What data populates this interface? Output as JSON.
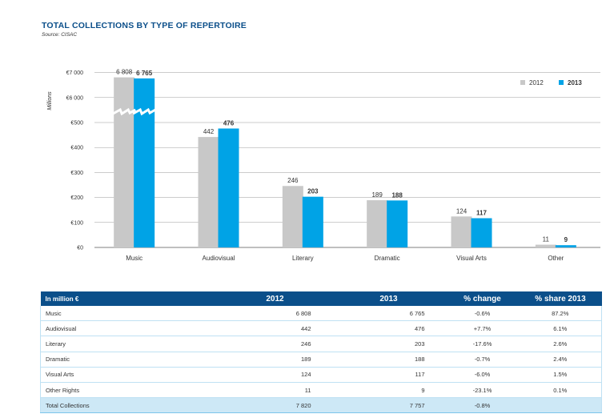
{
  "header": {
    "title": "TOTAL COLLECTIONS BY TYPE OF REPERTOIRE",
    "source": "Source: CISAC"
  },
  "chart_data": {
    "type": "bar",
    "ylabel": "Millions",
    "y_ticks": [
      "€0",
      "€100",
      "€200",
      "€300",
      "€400",
      "€500",
      "€6 000",
      "€7 000"
    ],
    "axis_break": "between €500 and €6 000",
    "categories": [
      "Music",
      "Audiovisual",
      "Literary",
      "Dramatic",
      "Visual Arts",
      "Other"
    ],
    "series": [
      {
        "name": "2012",
        "color": "#c8c8c8",
        "values": [
          6808,
          442,
          246,
          189,
          124,
          11
        ],
        "labels": [
          "6 808",
          "442",
          "246",
          "189",
          "124",
          "11"
        ]
      },
      {
        "name": "2013",
        "color": "#00a3e6",
        "values": [
          6765,
          476,
          203,
          188,
          117,
          9
        ],
        "labels": [
          "6 765",
          "476",
          "203",
          "188",
          "117",
          "9"
        ]
      }
    ],
    "legend_position": "top-right",
    "grid": true
  },
  "table": {
    "headers": [
      "In million €",
      "2012",
      "2013",
      "% change",
      "% share 2013"
    ],
    "rows": [
      [
        "Music",
        "6 808",
        "6 765",
        "-0.6%",
        "87.2%"
      ],
      [
        "Audiovisual",
        "442",
        "476",
        "+7.7%",
        "6.1%"
      ],
      [
        "Literary",
        "246",
        "203",
        "-17.6%",
        "2.6%"
      ],
      [
        "Dramatic",
        "189",
        "188",
        "-0.7%",
        "2.4%"
      ],
      [
        "Visual Arts",
        "124",
        "117",
        "-6.0%",
        "1.5%"
      ],
      [
        "Other Rights",
        "11",
        "9",
        "-23.1%",
        "0.1%"
      ]
    ],
    "total": [
      "Total Collections",
      "7 820",
      "7 757",
      "-0.8%",
      ""
    ]
  }
}
